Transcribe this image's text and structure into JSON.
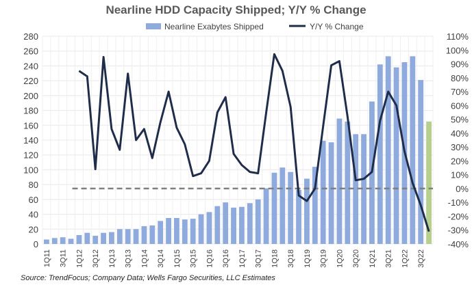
{
  "chart_data": {
    "type": "bar+line",
    "title": "Nearline HDD Capacity Shipped; Y/Y % Change",
    "source": "Source:  TrendFocus; Company Data; Wells Fargo Securities, LLC Estimates",
    "categories": [
      "1Q11",
      "2Q11",
      "3Q11",
      "4Q11",
      "1Q12",
      "2Q12",
      "3Q12",
      "4Q12",
      "1Q13",
      "2Q13",
      "3Q13",
      "4Q13",
      "1Q14",
      "2Q14",
      "3Q14",
      "4Q14",
      "1Q15",
      "2Q15",
      "3Q15",
      "4Q15",
      "1Q16",
      "2Q16",
      "3Q16",
      "4Q16",
      "1Q17",
      "2Q17",
      "3Q17",
      "4Q17",
      "1Q18",
      "2Q18",
      "3Q18",
      "4Q18",
      "1Q19",
      "2Q19",
      "3Q19",
      "4Q19",
      "1Q20",
      "2Q20",
      "3Q20",
      "4Q20",
      "1Q21",
      "2Q21",
      "3Q21",
      "4Q21",
      "1Q22",
      "2Q22",
      "3Q22",
      "4Q22"
    ],
    "tick_labels": [
      "1Q11",
      "3Q11",
      "1Q12",
      "3Q12",
      "1Q13",
      "3Q13",
      "1Q14",
      "3Q14",
      "1Q15",
      "3Q15",
      "1Q16",
      "3Q16",
      "1Q17",
      "3Q17",
      "1Q18",
      "3Q18",
      "1Q19",
      "3Q19",
      "1Q20",
      "3Q20",
      "1Q21",
      "3Q21",
      "1Q22",
      "3Q22"
    ],
    "series": [
      {
        "name": "Nearline Exabytes Shipped",
        "type": "bar",
        "axis": "left",
        "color": "#8FAADC",
        "estimate_color": "#B5CF8F",
        "values": [
          6,
          8,
          9,
          7,
          12,
          15,
          11,
          15,
          16,
          20,
          20,
          20,
          24,
          25,
          31,
          35,
          35,
          33,
          34,
          40,
          43,
          51,
          56,
          49,
          50,
          55,
          60,
          75,
          96,
          103,
          97,
          73,
          88,
          104,
          139,
          137,
          169,
          165,
          148,
          148,
          192,
          242,
          253,
          238,
          245,
          253,
          221,
          165
        ],
        "estimate_from": "4Q22"
      },
      {
        "name": "Y/Y % Change",
        "type": "line",
        "axis": "right",
        "color": "#1F2D4A",
        "values": [
          null,
          null,
          null,
          null,
          85,
          81,
          14,
          95,
          43,
          28,
          83,
          35,
          43,
          22,
          48,
          70,
          44,
          32,
          9,
          11,
          20,
          55,
          66,
          25,
          17,
          12,
          11,
          55,
          97,
          85,
          59,
          -5,
          -9,
          0,
          45,
          89,
          92,
          52,
          6,
          7,
          12,
          49,
          70,
          60,
          27,
          4,
          -12,
          -31
        ]
      }
    ],
    "y_left": {
      "min": 0,
      "max": 280,
      "step": 20
    },
    "y_right": {
      "min": -40,
      "max": 110,
      "step": 10,
      "format": "percent"
    },
    "reference_line": {
      "value": 0,
      "axis": "right",
      "style": "dashed",
      "color": "#7F7F7F"
    },
    "grid": true,
    "legend_placement": "top"
  }
}
